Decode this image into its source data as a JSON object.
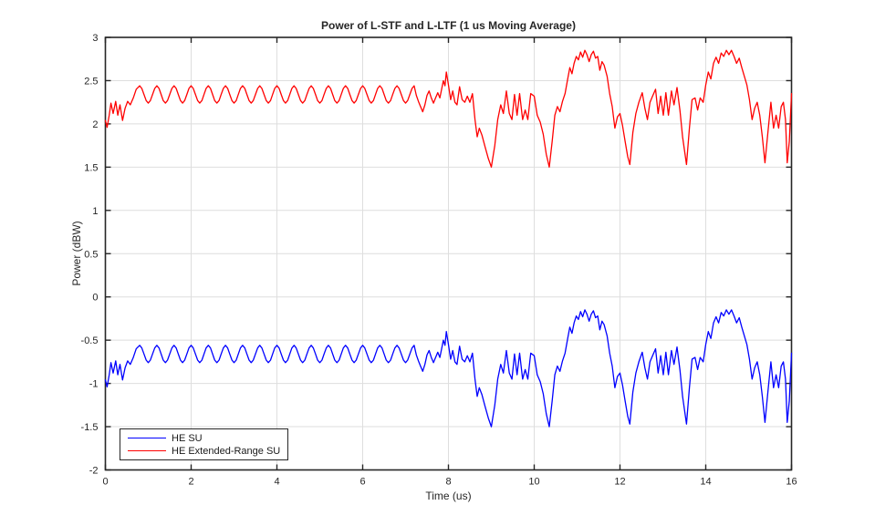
{
  "figure": {
    "background": "#ffffff"
  },
  "chart_data": {
    "type": "line",
    "title": "Power of L-STF and L-LTF (1 us Moving Average)",
    "xlabel": "Time (us)",
    "ylabel": "Power (dBW)",
    "xlim": [
      0,
      16
    ],
    "ylim": [
      -2,
      3
    ],
    "xticks": [
      0,
      2,
      4,
      6,
      8,
      10,
      12,
      14,
      16
    ],
    "yticks": [
      -2,
      -1.5,
      -1,
      -0.5,
      0,
      0.5,
      1,
      1.5,
      2,
      2.5,
      3
    ],
    "ytick_labels": [
      "-2",
      "-1.5",
      "-1",
      "-0.5",
      "0",
      "0.5",
      "1",
      "1.5",
      "2",
      "2.5",
      "3"
    ],
    "grid": true,
    "grid_color": "#dedede",
    "axis_color": "#262626",
    "legend_position": "bottom-left",
    "x": [
      0,
      0.04,
      0.09,
      0.13,
      0.18,
      0.24,
      0.29,
      0.34,
      0.4,
      0.46,
      0.52,
      0.58,
      0.65,
      0.72,
      0.8,
      0.85,
      0.9,
      0.95,
      1,
      1.05,
      1.1,
      1.15,
      1.2,
      1.25,
      1.3,
      1.35,
      1.4,
      1.45,
      1.5,
      1.55,
      1.6,
      1.65,
      1.7,
      1.75,
      1.8,
      1.85,
      1.9,
      1.95,
      2,
      2.05,
      2.1,
      2.15,
      2.2,
      2.25,
      2.3,
      2.35,
      2.4,
      2.45,
      2.5,
      2.55,
      2.6,
      2.65,
      2.7,
      2.75,
      2.8,
      2.85,
      2.9,
      2.95,
      3,
      3.05,
      3.1,
      3.15,
      3.2,
      3.25,
      3.3,
      3.35,
      3.4,
      3.45,
      3.5,
      3.55,
      3.6,
      3.65,
      3.7,
      3.75,
      3.8,
      3.85,
      3.9,
      3.95,
      4,
      4.05,
      4.1,
      4.15,
      4.2,
      4.25,
      4.3,
      4.35,
      4.4,
      4.45,
      4.5,
      4.55,
      4.6,
      4.65,
      4.7,
      4.75,
      4.8,
      4.85,
      4.9,
      4.95,
      5,
      5.05,
      5.1,
      5.15,
      5.2,
      5.25,
      5.3,
      5.35,
      5.4,
      5.45,
      5.5,
      5.55,
      5.6,
      5.65,
      5.7,
      5.75,
      5.8,
      5.85,
      5.9,
      5.95,
      6,
      6.05,
      6.1,
      6.15,
      6.2,
      6.25,
      6.3,
      6.35,
      6.4,
      6.45,
      6.5,
      6.55,
      6.6,
      6.65,
      6.7,
      6.75,
      6.8,
      6.85,
      6.9,
      6.95,
      7,
      7.05,
      7.1,
      7.15,
      7.2,
      7.25,
      7.3,
      7.35,
      7.4,
      7.45,
      7.5,
      7.55,
      7.6,
      7.65,
      7.7,
      7.75,
      7.8,
      7.85,
      7.88,
      7.92,
      7.95,
      8,
      8.05,
      8.1,
      8.15,
      8.2,
      8.26,
      8.32,
      8.38,
      8.44,
      8.5,
      8.56,
      8.62,
      8.67,
      8.72,
      8.78,
      8.85,
      8.93,
      9,
      9.08,
      9.15,
      9.22,
      9.28,
      9.35,
      9.42,
      9.48,
      9.54,
      9.6,
      9.66,
      9.73,
      9.79,
      9.85,
      9.92,
      10,
      10.07,
      10.14,
      10.21,
      10.28,
      10.35,
      10.42,
      10.48,
      10.54,
      10.6,
      10.66,
      10.72,
      10.78,
      10.83,
      10.88,
      10.93,
      10.98,
      11.03,
      11.08,
      11.13,
      11.18,
      11.23,
      11.28,
      11.33,
      11.38,
      11.43,
      11.48,
      11.53,
      11.58,
      11.63,
      11.7,
      11.76,
      11.82,
      11.88,
      11.94,
      12,
      12.06,
      12.12,
      12.18,
      12.23,
      12.3,
      12.37,
      12.44,
      12.52,
      12.58,
      12.64,
      12.7,
      12.76,
      12.83,
      12.89,
      12.95,
      13.01,
      13.07,
      13.13,
      13.2,
      13.26,
      13.33,
      13.4,
      13.46,
      13.55,
      13.62,
      13.68,
      13.75,
      13.81,
      13.87,
      13.94,
      14,
      14.06,
      14.12,
      14.18,
      14.24,
      14.3,
      14.36,
      14.42,
      14.48,
      14.54,
      14.6,
      14.66,
      14.72,
      14.78,
      14.84,
      14.9,
      14.96,
      15.02,
      15.08,
      15.14,
      15.2,
      15.26,
      15.32,
      15.38,
      15.45,
      15.52,
      15.58,
      15.64,
      15.7,
      15.76,
      15.81,
      15.86,
      15.9,
      15.95,
      16
    ],
    "series": [
      {
        "name": "HE SU",
        "color": "#0000ff",
        "values": [
          -0.96,
          -1.04,
          -0.9,
          -0.76,
          -0.88,
          -0.74,
          -0.9,
          -0.78,
          -0.96,
          -0.82,
          -0.74,
          -0.78,
          -0.7,
          -0.6,
          -0.56,
          -0.59,
          -0.66,
          -0.73,
          -0.76,
          -0.73,
          -0.66,
          -0.59,
          -0.56,
          -0.59,
          -0.66,
          -0.73,
          -0.76,
          -0.73,
          -0.66,
          -0.59,
          -0.56,
          -0.59,
          -0.66,
          -0.73,
          -0.76,
          -0.73,
          -0.66,
          -0.59,
          -0.56,
          -0.59,
          -0.66,
          -0.73,
          -0.76,
          -0.73,
          -0.66,
          -0.59,
          -0.56,
          -0.59,
          -0.66,
          -0.73,
          -0.76,
          -0.73,
          -0.66,
          -0.59,
          -0.56,
          -0.59,
          -0.66,
          -0.73,
          -0.76,
          -0.73,
          -0.66,
          -0.59,
          -0.56,
          -0.59,
          -0.66,
          -0.73,
          -0.76,
          -0.73,
          -0.66,
          -0.59,
          -0.56,
          -0.59,
          -0.66,
          -0.73,
          -0.76,
          -0.73,
          -0.66,
          -0.59,
          -0.56,
          -0.59,
          -0.66,
          -0.73,
          -0.76,
          -0.73,
          -0.66,
          -0.59,
          -0.56,
          -0.59,
          -0.66,
          -0.73,
          -0.76,
          -0.73,
          -0.66,
          -0.59,
          -0.56,
          -0.59,
          -0.66,
          -0.73,
          -0.76,
          -0.73,
          -0.66,
          -0.59,
          -0.56,
          -0.59,
          -0.66,
          -0.73,
          -0.76,
          -0.73,
          -0.66,
          -0.59,
          -0.56,
          -0.59,
          -0.66,
          -0.73,
          -0.76,
          -0.73,
          -0.66,
          -0.59,
          -0.56,
          -0.59,
          -0.66,
          -0.73,
          -0.76,
          -0.73,
          -0.66,
          -0.59,
          -0.56,
          -0.59,
          -0.66,
          -0.73,
          -0.76,
          -0.73,
          -0.66,
          -0.59,
          -0.56,
          -0.59,
          -0.66,
          -0.73,
          -0.76,
          -0.73,
          -0.66,
          -0.59,
          -0.56,
          -0.67,
          -0.74,
          -0.8,
          -0.86,
          -0.78,
          -0.67,
          -0.62,
          -0.7,
          -0.76,
          -0.7,
          -0.64,
          -0.7,
          -0.58,
          -0.5,
          -0.56,
          -0.4,
          -0.55,
          -0.72,
          -0.62,
          -0.75,
          -0.78,
          -0.57,
          -0.72,
          -0.75,
          -0.68,
          -0.75,
          -0.65,
          -0.95,
          -1.15,
          -1.05,
          -1.13,
          -1.26,
          -1.4,
          -1.5,
          -1.25,
          -0.95,
          -0.78,
          -0.88,
          -0.62,
          -0.88,
          -0.95,
          -0.66,
          -0.9,
          -0.65,
          -0.95,
          -0.84,
          -0.95,
          -0.65,
          -0.68,
          -0.9,
          -0.98,
          -1.12,
          -1.35,
          -1.5,
          -1.2,
          -0.9,
          -0.8,
          -0.86,
          -0.74,
          -0.65,
          -0.48,
          -0.35,
          -0.42,
          -0.3,
          -0.22,
          -0.26,
          -0.17,
          -0.23,
          -0.15,
          -0.2,
          -0.28,
          -0.2,
          -0.16,
          -0.24,
          -0.22,
          -0.38,
          -0.28,
          -0.32,
          -0.45,
          -0.65,
          -0.8,
          -1.05,
          -0.92,
          -0.88,
          -1.02,
          -1.2,
          -1.38,
          -1.47,
          -1.1,
          -0.88,
          -0.75,
          -0.64,
          -0.82,
          -0.95,
          -0.75,
          -0.68,
          -0.6,
          -0.88,
          -0.68,
          -0.9,
          -0.64,
          -0.9,
          -0.62,
          -0.78,
          -0.58,
          -0.85,
          -1.15,
          -1.47,
          -1.05,
          -0.72,
          -0.7,
          -0.84,
          -0.7,
          -0.75,
          -0.55,
          -0.4,
          -0.48,
          -0.3,
          -0.23,
          -0.3,
          -0.18,
          -0.22,
          -0.15,
          -0.2,
          -0.15,
          -0.22,
          -0.3,
          -0.24,
          -0.35,
          -0.45,
          -0.55,
          -0.72,
          -0.95,
          -0.82,
          -0.75,
          -0.9,
          -1.15,
          -1.45,
          -1.1,
          -0.75,
          -1.05,
          -0.9,
          -1.05,
          -0.8,
          -0.75,
          -0.95,
          -1.45,
          -1.2,
          -0.65
        ]
      },
      {
        "name": "HE Extended-Range SU",
        "color": "#ff0000",
        "values": [
          2.04,
          1.96,
          2.1,
          2.24,
          2.12,
          2.26,
          2.1,
          2.22,
          2.04,
          2.18,
          2.26,
          2.22,
          2.3,
          2.4,
          2.44,
          2.41,
          2.34,
          2.27,
          2.24,
          2.27,
          2.34,
          2.41,
          2.44,
          2.41,
          2.34,
          2.27,
          2.24,
          2.27,
          2.34,
          2.41,
          2.44,
          2.41,
          2.34,
          2.27,
          2.24,
          2.27,
          2.34,
          2.41,
          2.44,
          2.41,
          2.34,
          2.27,
          2.24,
          2.27,
          2.34,
          2.41,
          2.44,
          2.41,
          2.34,
          2.27,
          2.24,
          2.27,
          2.34,
          2.41,
          2.44,
          2.41,
          2.34,
          2.27,
          2.24,
          2.27,
          2.34,
          2.41,
          2.44,
          2.41,
          2.34,
          2.27,
          2.24,
          2.27,
          2.34,
          2.41,
          2.44,
          2.41,
          2.34,
          2.27,
          2.24,
          2.27,
          2.34,
          2.41,
          2.44,
          2.41,
          2.34,
          2.27,
          2.24,
          2.27,
          2.34,
          2.41,
          2.44,
          2.41,
          2.34,
          2.27,
          2.24,
          2.27,
          2.34,
          2.41,
          2.44,
          2.41,
          2.34,
          2.27,
          2.24,
          2.27,
          2.34,
          2.41,
          2.44,
          2.41,
          2.34,
          2.27,
          2.24,
          2.27,
          2.34,
          2.41,
          2.44,
          2.41,
          2.34,
          2.27,
          2.24,
          2.27,
          2.34,
          2.41,
          2.44,
          2.41,
          2.34,
          2.27,
          2.24,
          2.27,
          2.34,
          2.41,
          2.44,
          2.41,
          2.34,
          2.27,
          2.24,
          2.27,
          2.34,
          2.41,
          2.44,
          2.41,
          2.34,
          2.27,
          2.24,
          2.27,
          2.34,
          2.41,
          2.44,
          2.33,
          2.26,
          2.2,
          2.14,
          2.22,
          2.33,
          2.38,
          2.3,
          2.24,
          2.3,
          2.36,
          2.3,
          2.42,
          2.5,
          2.44,
          2.6,
          2.45,
          2.28,
          2.38,
          2.25,
          2.22,
          2.43,
          2.28,
          2.25,
          2.32,
          2.25,
          2.35,
          2.05,
          1.85,
          1.95,
          1.87,
          1.74,
          1.6,
          1.5,
          1.75,
          2.05,
          2.22,
          2.12,
          2.38,
          2.12,
          2.05,
          2.34,
          2.1,
          2.35,
          2.05,
          2.16,
          2.05,
          2.35,
          2.32,
          2.1,
          2.02,
          1.88,
          1.65,
          1.5,
          1.8,
          2.1,
          2.2,
          2.14,
          2.26,
          2.35,
          2.52,
          2.65,
          2.58,
          2.7,
          2.78,
          2.74,
          2.83,
          2.77,
          2.85,
          2.8,
          2.72,
          2.8,
          2.84,
          2.76,
          2.78,
          2.62,
          2.72,
          2.68,
          2.55,
          2.35,
          2.2,
          1.95,
          2.08,
          2.12,
          1.98,
          1.8,
          1.62,
          1.53,
          1.9,
          2.12,
          2.25,
          2.36,
          2.18,
          2.05,
          2.25,
          2.32,
          2.4,
          2.12,
          2.32,
          2.1,
          2.36,
          2.1,
          2.38,
          2.22,
          2.42,
          2.15,
          1.85,
          1.53,
          1.95,
          2.28,
          2.3,
          2.16,
          2.3,
          2.25,
          2.45,
          2.6,
          2.52,
          2.7,
          2.77,
          2.7,
          2.82,
          2.78,
          2.85,
          2.8,
          2.85,
          2.78,
          2.7,
          2.76,
          2.65,
          2.55,
          2.45,
          2.28,
          2.05,
          2.18,
          2.25,
          2.1,
          1.85,
          1.55,
          1.9,
          2.25,
          1.95,
          2.1,
          1.95,
          2.2,
          2.25,
          2.05,
          1.55,
          1.8,
          2.35
        ]
      }
    ]
  }
}
